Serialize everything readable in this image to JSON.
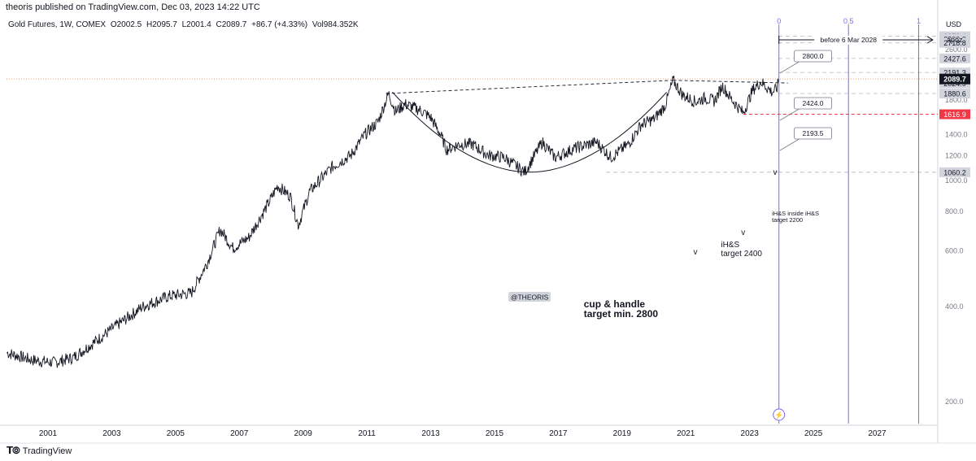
{
  "header": {
    "published": "theoris published on TradingView.com, Dec 03, 2023 14:22 UTC"
  },
  "legend": {
    "symbol": "Gold Futures, 1W, COMEX",
    "open": "O2002.5",
    "high": "H2095.7",
    "low": "L2001.4",
    "close": "C2089.7",
    "change": "+86.7 (+4.33%)",
    "volume": "Vol984.352K"
  },
  "axis_header": {
    "currency": "USD",
    "scale_mode": "apoz"
  },
  "footer": {
    "brand": "TradingView"
  },
  "colors": {
    "price": "#131722",
    "accent": "#7b68ee",
    "red": "#f23645",
    "last_price_bg": "#131722"
  },
  "chart_data": {
    "type": "line",
    "title": "Gold Futures, 1W, COMEX",
    "y_scale": "log",
    "ylim": [
      170,
      3300
    ],
    "xlim": [
      1999.7,
      2028.9
    ],
    "x_ticks": [
      "2001",
      "2003",
      "2005",
      "2007",
      "2009",
      "2011",
      "2013",
      "2015",
      "2017",
      "2019",
      "2021",
      "2023",
      "2025",
      "2027"
    ],
    "y_ticks": [
      "200.0",
      "400.0",
      "600.0",
      "800.0",
      "1000.0",
      "1200.0",
      "1400.0",
      "1800.0",
      "2000.0",
      "2200.0",
      "2400.0",
      "2600.0",
      "2800.0"
    ],
    "series": [
      {
        "x": [
          1999.7,
          2000.5,
          2001.2,
          2001.8,
          2002.5,
          2003.2,
          2004.0,
          2004.8,
          2005.5,
          2006.0,
          2006.4,
          2006.8,
          2007.3,
          2007.9,
          2008.2,
          2008.6,
          2008.85,
          2009.2,
          2009.9,
          2010.5,
          2010.95,
          2011.35,
          2011.68,
          2011.9,
          2012.2,
          2012.7,
          2013.0,
          2013.3,
          2013.5,
          2013.9,
          2014.3,
          2014.8,
          2015.3,
          2015.95,
          2016.5,
          2016.9,
          2017.5,
          2018.2,
          2018.65,
          2019.2,
          2019.6,
          2020.0,
          2020.35,
          2020.6,
          2020.9,
          2021.3,
          2021.6,
          2021.9,
          2022.15,
          2022.4,
          2022.8,
          2023.1,
          2023.35,
          2023.7,
          2023.85,
          2023.92
        ],
        "y": [
          285,
          270,
          265,
          275,
          310,
          350,
          400,
          430,
          440,
          550,
          700,
          610,
          660,
          840,
          960,
          890,
          720,
          920,
          1100,
          1200,
          1400,
          1530,
          1880,
          1650,
          1740,
          1660,
          1580,
          1400,
          1250,
          1300,
          1300,
          1200,
          1180,
          1060,
          1320,
          1180,
          1260,
          1320,
          1180,
          1300,
          1500,
          1560,
          1720,
          2070,
          1860,
          1770,
          1820,
          1780,
          1990,
          1820,
          1630,
          1930,
          2050,
          1900,
          1940,
          2089.7
        ]
      }
    ],
    "last_price": "2089.7",
    "price_labels": [
      {
        "value": 2852.4,
        "text": "2852.4"
      },
      {
        "value": 2800,
        "text": "2800.0"
      },
      {
        "value": 2718.8,
        "text": "2718.8"
      },
      {
        "value": 2427.6,
        "text": "2427.6"
      },
      {
        "value": 2191.3,
        "text": "2191.3"
      },
      {
        "value": 2024.9,
        "text": "2024.9"
      },
      {
        "value": 1880.6,
        "text": "1880.6"
      },
      {
        "value": 1616.9,
        "text": "1616.9",
        "color": "red"
      },
      {
        "value": 1060.2,
        "text": "1060.2"
      }
    ],
    "target_callouts": [
      "2800.0",
      "2424.0",
      "2193.5"
    ],
    "annotations": {
      "cup_handle_line1": "cup & handle",
      "cup_handle_line2": "target min. 2800",
      "ihs_line1": "iH&S",
      "ihs_line2": "target 2400",
      "inner_ihs_line1": "iH&S inside  iH&S",
      "inner_ihs_line2": "target 2200",
      "watermark_tag": "@THEORIS",
      "time_range": "before 6 Mar 2028",
      "fib_levels": [
        "0",
        "0.5",
        "1"
      ],
      "head_marks": [
        "v",
        "v",
        "v"
      ]
    }
  }
}
